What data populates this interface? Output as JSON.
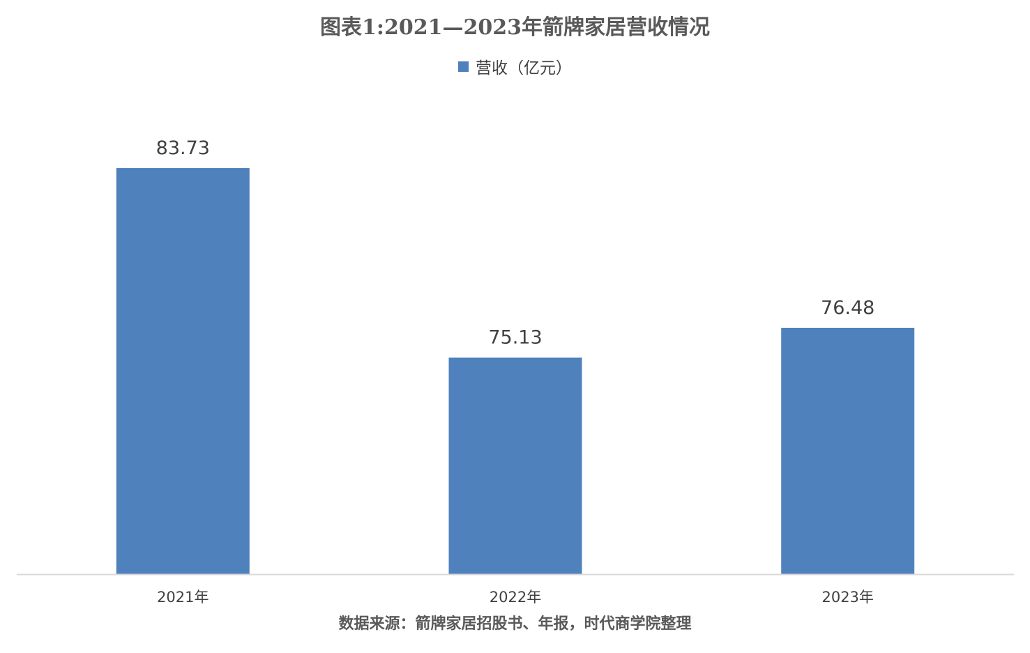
{
  "chart_data": {
    "type": "bar",
    "title": "图表1:2021—2023年箭牌家居营收情况",
    "categories": [
      "2021年",
      "2022年",
      "2023年"
    ],
    "series": [
      {
        "name": "营收（亿元）",
        "values": [
          83.73,
          75.13,
          76.48
        ],
        "data_labels": [
          "83.73",
          "75.13",
          "76.48"
        ],
        "color": "#4F81BD"
      }
    ],
    "xlabel": "",
    "ylabel": "",
    "y_axis_visible": false,
    "ylim": [
      65.3,
      83.73
    ],
    "grid": false,
    "legend": "top-center"
  },
  "colors": {
    "bar": "#4F81BD",
    "axis_line": "#D9D9D9",
    "text": "#404040",
    "title": "#595959"
  },
  "source_note": "数据来源：箭牌家居招股书、年报，时代商学院整理"
}
